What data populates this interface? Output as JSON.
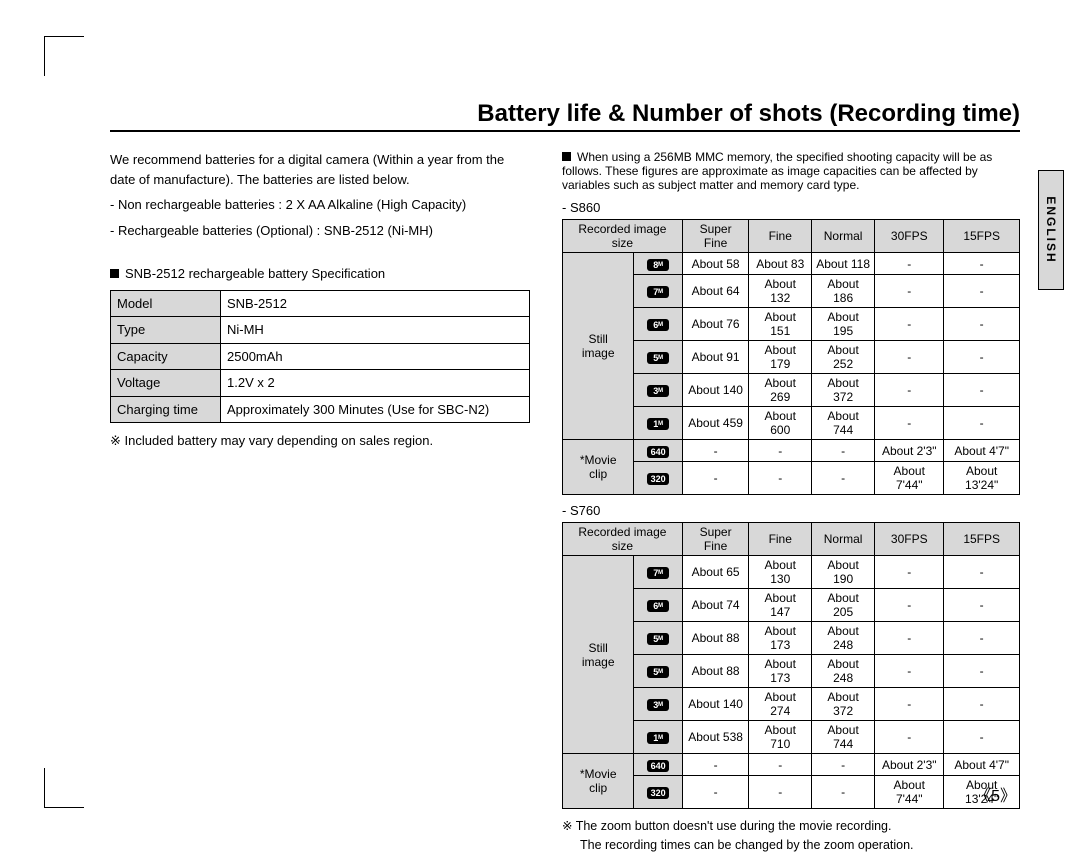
{
  "title": "Battery life & Number of shots (Recording time)",
  "langtab": "ENGLISH",
  "left": {
    "p1": "We recommend batteries for a digital camera (Within a year from the date of manufacture). The batteries are listed below.",
    "p2": "- Non rechargeable batteries : 2 X AA Alkaline (High Capacity)",
    "p3": "- Rechargeable batteries (Optional) : SNB-2512 (Ni-MH)",
    "spec_title": "SNB-2512 rechargeable battery Specification",
    "spec": [
      [
        "Model",
        "SNB-2512"
      ],
      [
        "Type",
        "Ni-MH"
      ],
      [
        "Capacity",
        "2500mAh"
      ],
      [
        "Voltage",
        "1.2V x 2"
      ],
      [
        "Charging time",
        "Approximately 300 Minutes (Use for SBC-N2)"
      ]
    ],
    "note": "※ Included battery may vary depending on sales region."
  },
  "right": {
    "intro": "When using a 256MB MMC memory, the specified shooting capacity will be as follows. These figures are approximate as image capacities can be affected by variables such as subject matter and memory card type.",
    "headers": [
      "Recorded image size",
      "Super Fine",
      "Fine",
      "Normal",
      "30FPS",
      "15FPS"
    ],
    "s860_label": "- S860",
    "s860_still_label": "Still image",
    "s860_movie_label": "*Movie clip",
    "s860": {
      "still_badges": [
        "8ᴹ",
        "7ᴹ",
        "6ᴹ",
        "5ᴹ",
        "3ᴹ",
        "1ᴹ"
      ],
      "still": [
        [
          "About 58",
          "About 83",
          "About 118",
          "-",
          "-"
        ],
        [
          "About 64",
          "About 132",
          "About 186",
          "-",
          "-"
        ],
        [
          "About 76",
          "About 151",
          "About 195",
          "-",
          "-"
        ],
        [
          "About 91",
          "About 179",
          "About 252",
          "-",
          "-"
        ],
        [
          "About 140",
          "About 269",
          "About 372",
          "-",
          "-"
        ],
        [
          "About 459",
          "About 600",
          "About 744",
          "-",
          "-"
        ]
      ],
      "movie_badges": [
        "640",
        "320"
      ],
      "movie": [
        [
          "-",
          "-",
          "-",
          "About 2'3\"",
          "About 4'7\""
        ],
        [
          "-",
          "-",
          "-",
          "About 7'44\"",
          "About 13'24\""
        ]
      ]
    },
    "s760_label": "- S760",
    "s760_still_label": "Still image",
    "s760_movie_label": "*Movie clip",
    "s760": {
      "still_badges": [
        "7ᴹ",
        "6ᴹ",
        "5ᴹ",
        "5ᴹ",
        "3ᴹ",
        "1ᴹ"
      ],
      "still": [
        [
          "About 65",
          "About 130",
          "About 190",
          "-",
          "-"
        ],
        [
          "About 74",
          "About 147",
          "About 205",
          "-",
          "-"
        ],
        [
          "About 88",
          "About 173",
          "About 248",
          "-",
          "-"
        ],
        [
          "About 88",
          "About 173",
          "About 248",
          "-",
          "-"
        ],
        [
          "About 140",
          "About 274",
          "About 372",
          "-",
          "-"
        ],
        [
          "About 538",
          "About 710",
          "About 744",
          "-",
          "-"
        ]
      ],
      "movie_badges": [
        "640",
        "320"
      ],
      "movie": [
        [
          "-",
          "-",
          "-",
          "About 2'3\"",
          "About 4'7\""
        ],
        [
          "-",
          "-",
          "-",
          "About 7'44\"",
          "About 13'24\""
        ]
      ]
    },
    "foot1": "※ The zoom button doesn't use during the movie recording.",
    "foot2": "The recording times can be changed by the zoom operation."
  },
  "page_number": "《5》"
}
